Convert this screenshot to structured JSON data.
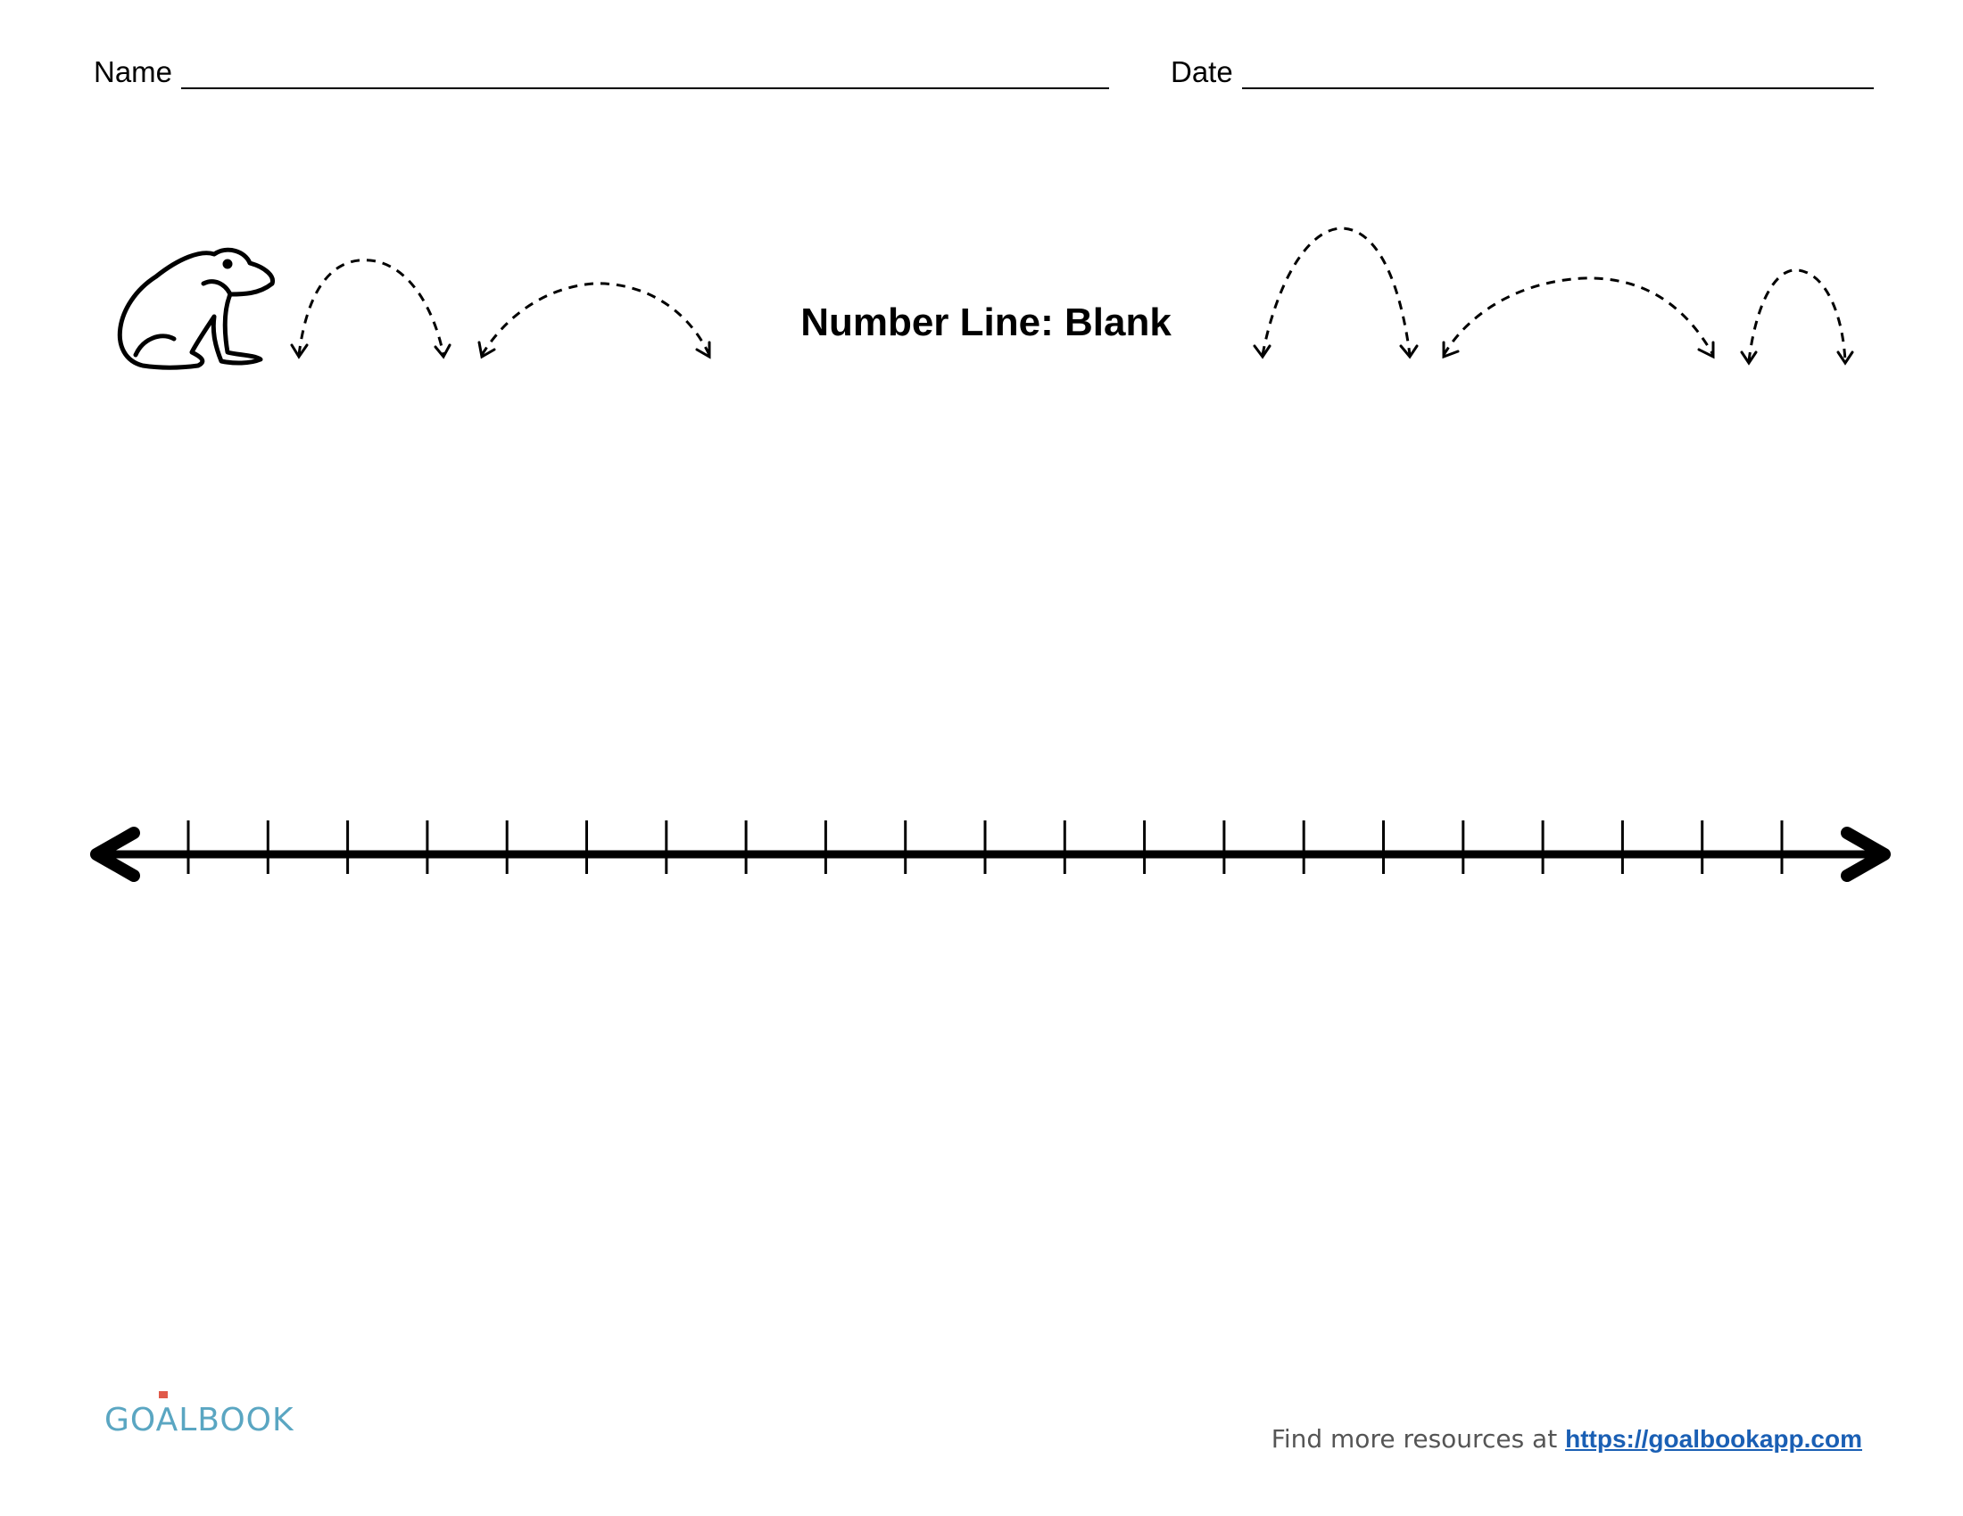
{
  "header": {
    "name_label": "Name",
    "date_label": "Date"
  },
  "title": "Number Line: Blank",
  "number_line": {
    "tick_count": 21,
    "tick_labels": []
  },
  "footer": {
    "logo_text": "GOALBOOK",
    "resources_text": "Find more resources at",
    "link_text": "https://goalbookapp.com"
  },
  "colors": {
    "ink": "#000000",
    "logo": "#5aa6c2",
    "link": "#1a5fb4"
  }
}
